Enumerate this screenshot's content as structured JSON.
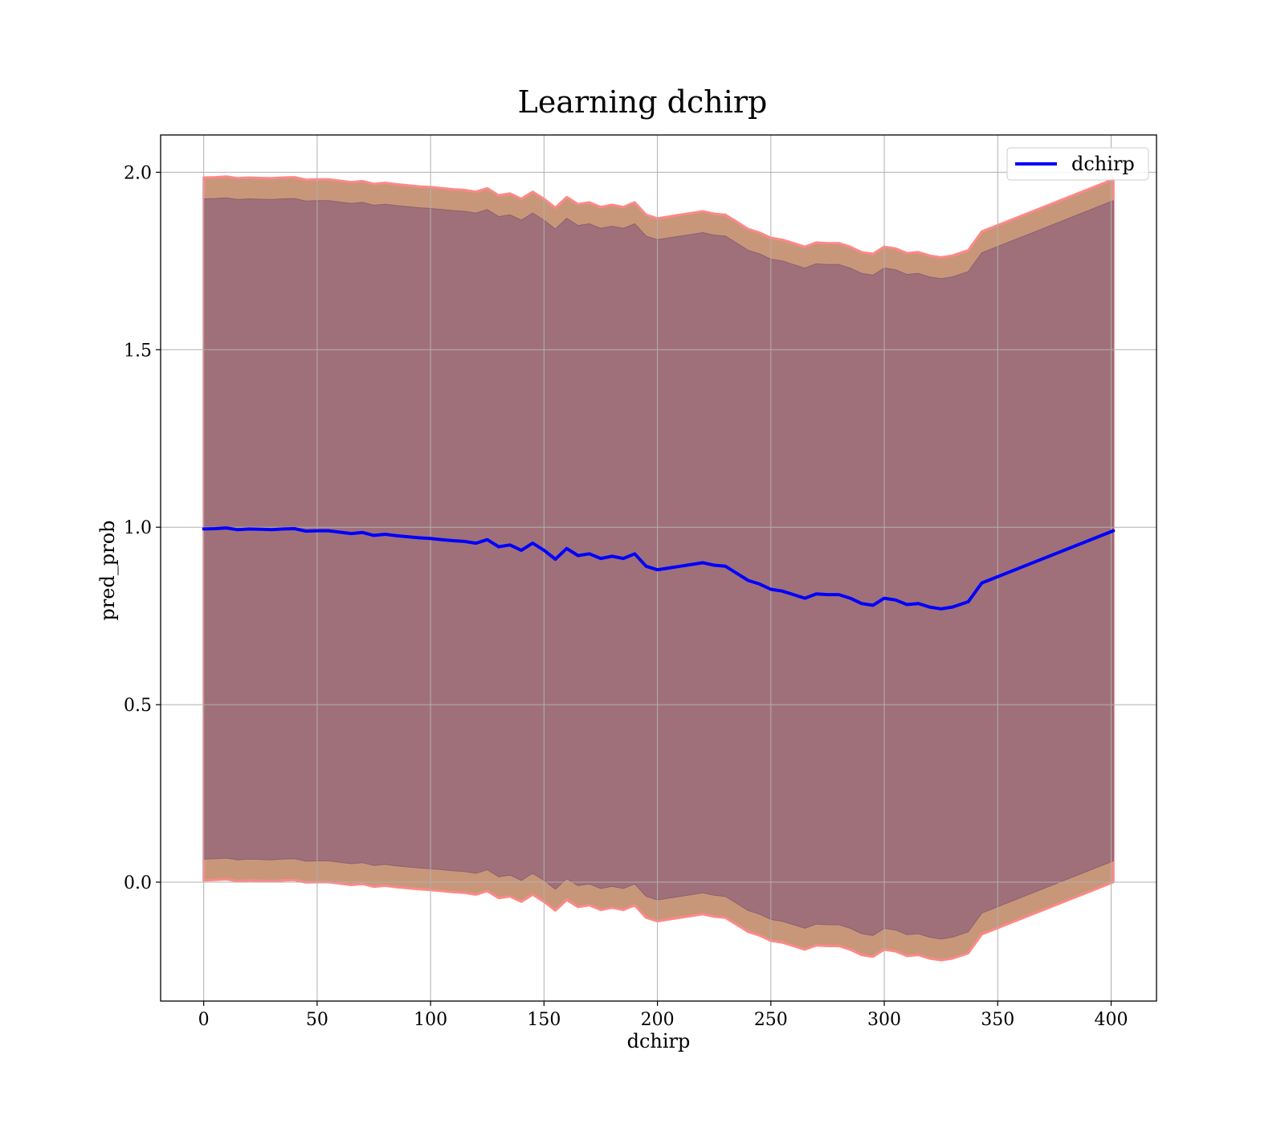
{
  "chart_data": {
    "type": "line",
    "title": "Learning dchirp",
    "xlabel": "dchirp",
    "ylabel": "pred_prob",
    "xlim": [
      -19,
      420
    ],
    "ylim": [
      -0.335,
      2.105
    ],
    "xticks": [
      0,
      50,
      100,
      150,
      200,
      250,
      300,
      350,
      400
    ],
    "xtick_labels": [
      "0",
      "50",
      "100",
      "150",
      "200",
      "250",
      "300",
      "350",
      "400"
    ],
    "yticks": [
      0.0,
      0.5,
      1.0,
      1.5,
      2.0
    ],
    "ytick_labels": [
      "0.0",
      "0.5",
      "1.0",
      "1.5",
      "2.0"
    ],
    "grid": true,
    "legend": {
      "position": "top-right",
      "entries": [
        "dchirp"
      ]
    },
    "colors": {
      "line": "#0000ff",
      "outer_band": "#c8977a",
      "outer_band_edge": "#ff8888",
      "inner_band": "#a0707a"
    },
    "series": [
      {
        "name": "dchirp",
        "style": "line",
        "x": [
          0,
          5,
          10,
          15,
          20,
          25,
          30,
          35,
          40,
          45,
          50,
          55,
          60,
          65,
          70,
          75,
          80,
          85,
          90,
          95,
          100,
          105,
          110,
          115,
          120,
          125,
          130,
          135,
          140,
          145,
          150,
          155,
          160,
          165,
          170,
          175,
          180,
          185,
          190,
          195,
          200,
          205,
          210,
          215,
          220,
          225,
          230,
          235,
          240,
          245,
          250,
          255,
          260,
          265,
          270,
          275,
          280,
          285,
          290,
          295,
          300,
          305,
          310,
          315,
          320,
          325,
          330,
          337,
          343,
          401
        ],
        "y": [
          0.995,
          0.996,
          0.998,
          0.993,
          0.995,
          0.994,
          0.993,
          0.995,
          0.996,
          0.989,
          0.99,
          0.99,
          0.986,
          0.982,
          0.985,
          0.977,
          0.98,
          0.976,
          0.973,
          0.97,
          0.968,
          0.965,
          0.962,
          0.96,
          0.955,
          0.965,
          0.945,
          0.95,
          0.935,
          0.955,
          0.935,
          0.91,
          0.94,
          0.92,
          0.925,
          0.912,
          0.918,
          0.912,
          0.925,
          0.89,
          0.88,
          0.885,
          0.89,
          0.895,
          0.9,
          0.893,
          0.89,
          0.87,
          0.85,
          0.84,
          0.825,
          0.82,
          0.81,
          0.8,
          0.812,
          0.81,
          0.81,
          0.8,
          0.785,
          0.78,
          0.8,
          0.795,
          0.782,
          0.785,
          0.775,
          0.77,
          0.775,
          0.79,
          0.843,
          0.99
        ]
      },
      {
        "name": "",
        "style": "band",
        "x": [
          0,
          5,
          10,
          15,
          20,
          25,
          30,
          35,
          40,
          45,
          50,
          55,
          60,
          65,
          70,
          75,
          80,
          85,
          90,
          95,
          100,
          105,
          110,
          115,
          120,
          125,
          130,
          135,
          140,
          145,
          150,
          155,
          160,
          165,
          170,
          175,
          180,
          185,
          190,
          195,
          200,
          205,
          210,
          215,
          220,
          225,
          230,
          235,
          240,
          245,
          250,
          255,
          260,
          265,
          270,
          275,
          280,
          285,
          290,
          295,
          300,
          305,
          310,
          315,
          320,
          325,
          330,
          337,
          343,
          401
        ],
        "upper": [
          1.985,
          1.986,
          1.988,
          1.983,
          1.985,
          1.984,
          1.983,
          1.985,
          1.986,
          1.979,
          1.98,
          1.98,
          1.976,
          1.972,
          1.975,
          1.967,
          1.97,
          1.966,
          1.963,
          1.96,
          1.958,
          1.955,
          1.952,
          1.95,
          1.945,
          1.955,
          1.935,
          1.94,
          1.925,
          1.945,
          1.925,
          1.9,
          1.93,
          1.91,
          1.915,
          1.902,
          1.908,
          1.902,
          1.915,
          1.88,
          1.87,
          1.875,
          1.88,
          1.885,
          1.89,
          1.883,
          1.88,
          1.86,
          1.84,
          1.83,
          1.815,
          1.81,
          1.8,
          1.79,
          1.802,
          1.8,
          1.8,
          1.79,
          1.775,
          1.77,
          1.79,
          1.785,
          1.772,
          1.775,
          1.765,
          1.76,
          1.765,
          1.78,
          1.833,
          1.98
        ],
        "lower": [
          0.005,
          0.006,
          0.008,
          0.003,
          0.005,
          0.004,
          0.003,
          0.005,
          0.006,
          -0.001,
          0.0,
          0.0,
          -0.004,
          -0.008,
          -0.005,
          -0.013,
          -0.01,
          -0.014,
          -0.017,
          -0.02,
          -0.022,
          -0.025,
          -0.028,
          -0.03,
          -0.035,
          -0.025,
          -0.045,
          -0.04,
          -0.055,
          -0.035,
          -0.055,
          -0.08,
          -0.05,
          -0.07,
          -0.065,
          -0.078,
          -0.072,
          -0.078,
          -0.065,
          -0.1,
          -0.11,
          -0.105,
          -0.1,
          -0.095,
          -0.09,
          -0.097,
          -0.1,
          -0.12,
          -0.14,
          -0.15,
          -0.165,
          -0.17,
          -0.18,
          -0.19,
          -0.178,
          -0.18,
          -0.18,
          -0.19,
          -0.205,
          -0.21,
          -0.19,
          -0.195,
          -0.208,
          -0.205,
          -0.215,
          -0.22,
          -0.215,
          -0.2,
          -0.147,
          0.0
        ]
      },
      {
        "name": "",
        "style": "band",
        "x": [
          0,
          5,
          10,
          15,
          20,
          25,
          30,
          35,
          40,
          45,
          50,
          55,
          60,
          65,
          70,
          75,
          80,
          85,
          90,
          95,
          100,
          105,
          110,
          115,
          120,
          125,
          130,
          135,
          140,
          145,
          150,
          155,
          160,
          165,
          170,
          175,
          180,
          185,
          190,
          195,
          200,
          205,
          210,
          215,
          220,
          225,
          230,
          235,
          240,
          245,
          250,
          255,
          260,
          265,
          270,
          275,
          280,
          285,
          290,
          295,
          300,
          305,
          310,
          315,
          320,
          325,
          330,
          337,
          343,
          401
        ],
        "upper": [
          1.925,
          1.926,
          1.928,
          1.923,
          1.925,
          1.924,
          1.923,
          1.925,
          1.926,
          1.919,
          1.92,
          1.92,
          1.916,
          1.912,
          1.915,
          1.907,
          1.91,
          1.906,
          1.903,
          1.9,
          1.898,
          1.895,
          1.892,
          1.89,
          1.885,
          1.895,
          1.875,
          1.88,
          1.865,
          1.885,
          1.865,
          1.84,
          1.87,
          1.85,
          1.855,
          1.842,
          1.848,
          1.842,
          1.855,
          1.82,
          1.81,
          1.815,
          1.82,
          1.825,
          1.83,
          1.823,
          1.82,
          1.8,
          1.78,
          1.77,
          1.755,
          1.75,
          1.74,
          1.73,
          1.742,
          1.74,
          1.74,
          1.73,
          1.715,
          1.71,
          1.73,
          1.725,
          1.712,
          1.715,
          1.705,
          1.7,
          1.705,
          1.72,
          1.773,
          1.92
        ],
        "lower": [
          0.065,
          0.066,
          0.068,
          0.063,
          0.065,
          0.064,
          0.063,
          0.065,
          0.066,
          0.059,
          0.06,
          0.06,
          0.056,
          0.052,
          0.055,
          0.047,
          0.05,
          0.046,
          0.043,
          0.04,
          0.038,
          0.035,
          0.032,
          0.03,
          0.025,
          0.035,
          0.015,
          0.02,
          0.005,
          0.025,
          0.005,
          -0.02,
          0.01,
          -0.01,
          -0.005,
          -0.018,
          -0.012,
          -0.018,
          -0.005,
          -0.04,
          -0.05,
          -0.045,
          -0.04,
          -0.035,
          -0.03,
          -0.037,
          -0.04,
          -0.06,
          -0.08,
          -0.09,
          -0.105,
          -0.11,
          -0.12,
          -0.13,
          -0.118,
          -0.12,
          -0.12,
          -0.13,
          -0.145,
          -0.15,
          -0.13,
          -0.135,
          -0.148,
          -0.145,
          -0.155,
          -0.16,
          -0.155,
          -0.14,
          -0.087,
          0.06
        ]
      }
    ]
  }
}
